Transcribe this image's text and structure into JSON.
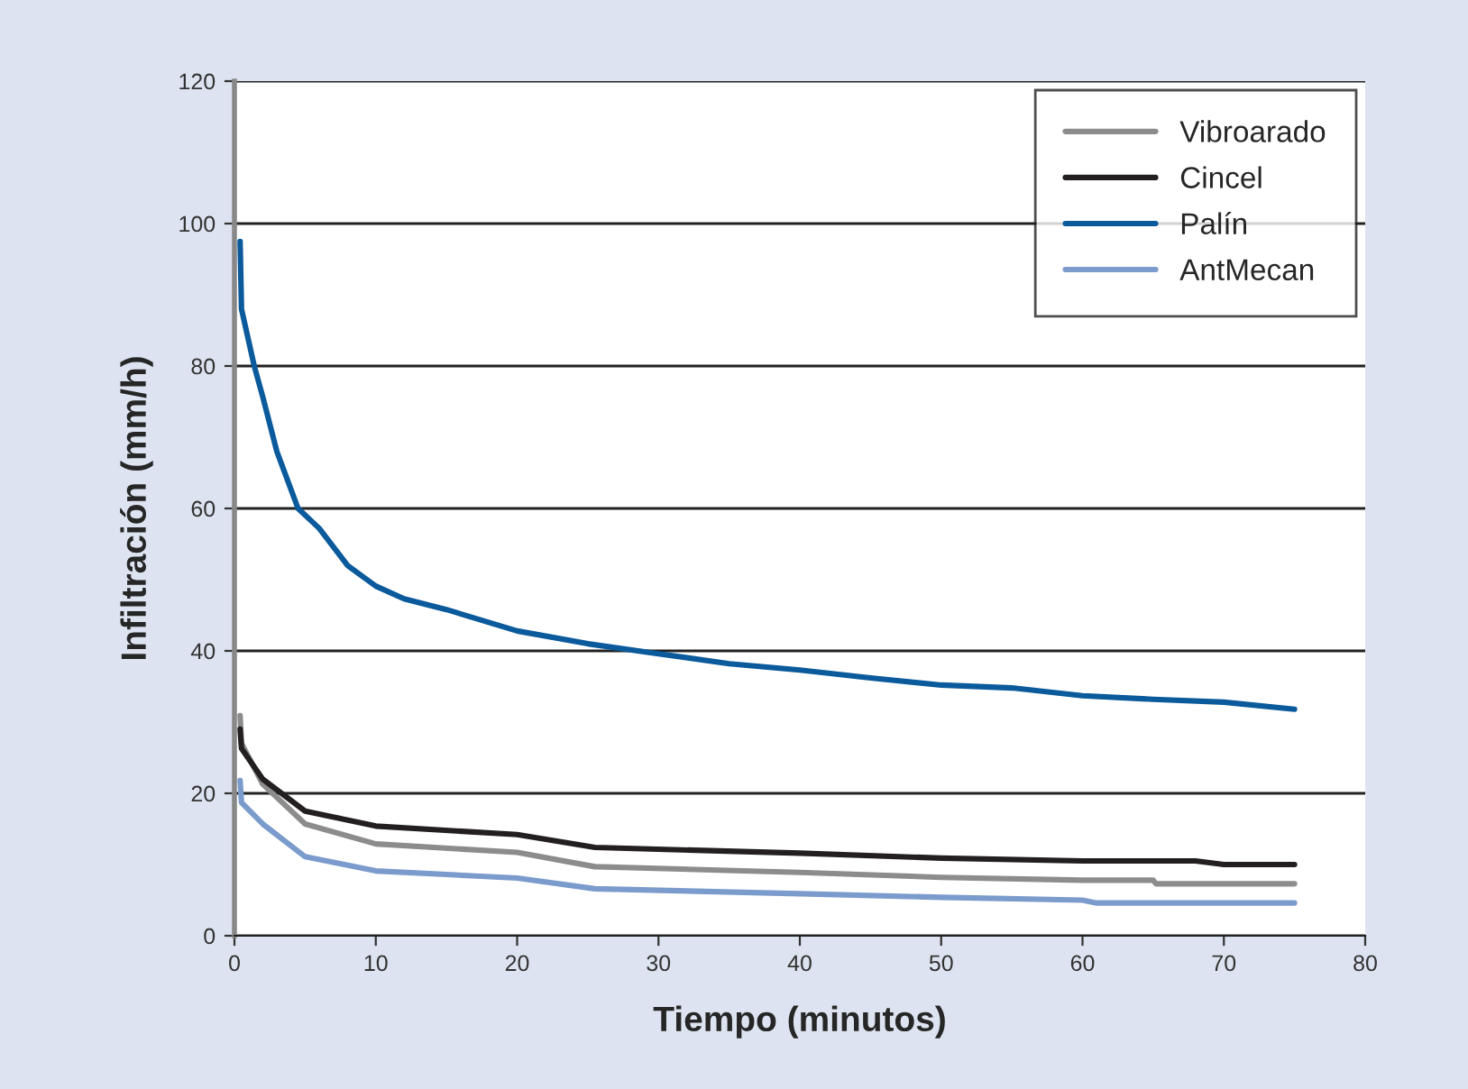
{
  "chart_data": {
    "type": "line",
    "xlabel": "Tiempo (minutos)",
    "ylabel": "Infiltración (mm/h)",
    "xlim": [
      0,
      80
    ],
    "ylim": [
      0,
      120
    ],
    "xticks": [
      0,
      10,
      20,
      30,
      40,
      50,
      60,
      70,
      80
    ],
    "yticks": [
      0,
      20,
      40,
      60,
      80,
      100,
      120
    ],
    "grid": "y",
    "legend": "top right",
    "line_style": "solid",
    "marker": "none",
    "series": [
      {
        "name": "Vibroarado",
        "color": "#8c8c8c",
        "x": [
          0.4,
          0.5,
          2,
          5,
          10,
          20,
          25.5,
          40,
          50,
          60,
          65,
          65.2,
          75
        ],
        "values": [
          30.9,
          27,
          21.3,
          15.7,
          12.9,
          11.7,
          9.7,
          8.9,
          8.2,
          7.8,
          7.8,
          7.3,
          7.3
        ]
      },
      {
        "name": "Cincel",
        "color": "#231f20",
        "x": [
          0.4,
          0.5,
          2,
          5,
          10,
          20,
          25.5,
          40,
          50,
          60,
          68,
          70,
          75
        ],
        "values": [
          29,
          26.3,
          22,
          17.5,
          15.4,
          14.2,
          12.4,
          11.6,
          10.9,
          10.5,
          10.5,
          10,
          10
        ]
      },
      {
        "name": "Palín",
        "color": "#0a5a9c",
        "x": [
          0.4,
          0.5,
          1.4,
          2,
          3,
          4.5,
          6,
          8,
          10,
          12,
          15,
          20,
          25,
          30,
          35,
          40,
          45,
          50,
          55,
          60,
          65,
          70,
          75
        ],
        "values": [
          97.5,
          88,
          80,
          75.7,
          68,
          60,
          57.2,
          52,
          49.1,
          47.3,
          45.8,
          42.8,
          41,
          39.6,
          38.2,
          37.3,
          36.2,
          35.2,
          34.8,
          33.7,
          33.2,
          32.8,
          31.8
        ]
      },
      {
        "name": "AntMecan",
        "color": "#7b9bcd",
        "x": [
          0.4,
          0.5,
          2,
          5,
          10,
          20,
          25.5,
          40,
          50,
          60,
          61,
          75
        ],
        "values": [
          21.8,
          18.7,
          15.7,
          11.1,
          9.1,
          8.1,
          6.6,
          5.9,
          5.4,
          5,
          4.6,
          4.6
        ]
      }
    ]
  }
}
